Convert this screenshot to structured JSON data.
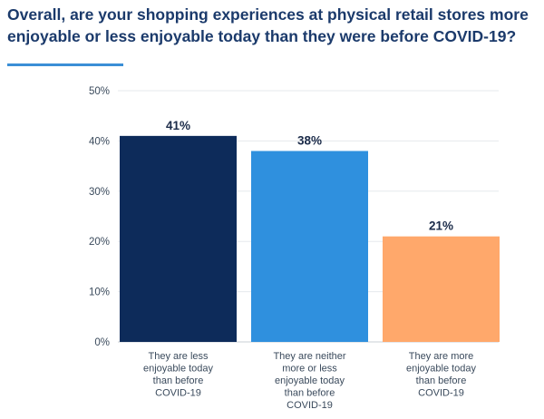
{
  "chart_data": {
    "type": "bar",
    "title": "Overall, are your shopping experiences at physical retail stores more enjoyable or less enjoyable today than they were before COVID-19?",
    "categories": [
      [
        "They are less",
        "enjoyable today",
        "than before",
        "COVID-19"
      ],
      [
        "They are neither",
        "more or less",
        "enjoyable today",
        "than before",
        "COVID-19"
      ],
      [
        "They are more",
        "enjoyable today",
        "than before",
        "COVID-19"
      ]
    ],
    "values": [
      41,
      38,
      21
    ],
    "data_labels": [
      "41%",
      "38%",
      "21%"
    ],
    "colors": [
      "#0d2b5a",
      "#2f90de",
      "#ffa86b"
    ],
    "ylim": [
      0,
      50
    ],
    "yticks": [
      0,
      10,
      20,
      30,
      40,
      50
    ],
    "ytick_labels": [
      "0%",
      "10%",
      "20%",
      "30%",
      "40%",
      "50%"
    ],
    "grid": true
  }
}
